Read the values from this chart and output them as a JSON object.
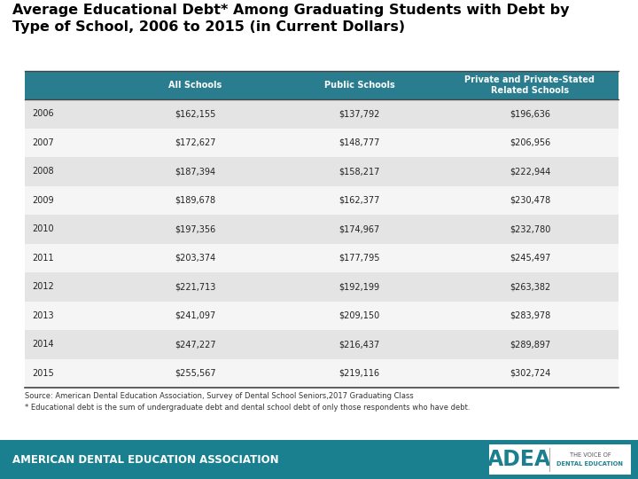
{
  "title": "Average Educational Debt* Among Graduating Students with Debt by\nType of School, 2006 to 2015 (in Current Dollars)",
  "header": [
    "All Schools",
    "Public Schools",
    "Private and Private-Stated\nRelated Schools"
  ],
  "years": [
    "2006",
    "2007",
    "2008",
    "2009",
    "2010",
    "2011",
    "2012",
    "2013",
    "2014",
    "2015"
  ],
  "col1": [
    "$162,155",
    "$172,627",
    "$187,394",
    "$189,678",
    "$197,356",
    "$203,374",
    "$221,713",
    "$241,097",
    "$247,227",
    "$255,567"
  ],
  "col2": [
    "$137,792",
    "$148,777",
    "$158,217",
    "$162,377",
    "$174,967",
    "$177,795",
    "$192,199",
    "$209,150",
    "$216,437",
    "$219,116"
  ],
  "col3": [
    "$196,636",
    "$206,956",
    "$222,944",
    "$230,478",
    "$232,780",
    "$245,497",
    "$263,382",
    "$283,978",
    "$289,897",
    "$302,724"
  ],
  "header_bg": "#2a7d8e",
  "header_text": "#ffffff",
  "row_bg_even": "#e4e4e4",
  "row_bg_odd": "#f5f5f5",
  "row_text": "#222222",
  "footer_bg": "#1a8090",
  "footer_text": "#ffffff",
  "source_text": "Source: American Dental Education Association, Survey of Dental School Seniors,2017 Graduating Class",
  "footnote_text": "* Educational debt is the sum of undergraduate debt and dental school debt of only those respondents who have debt.",
  "adea_text": "AMERICAN DENTAL EDUCATION ASSOCIATION",
  "title_fontsize": 11.5,
  "header_fontsize": 7.0,
  "row_fontsize": 7.0,
  "footer_fontsize": 8.5,
  "source_fontsize": 6.0
}
